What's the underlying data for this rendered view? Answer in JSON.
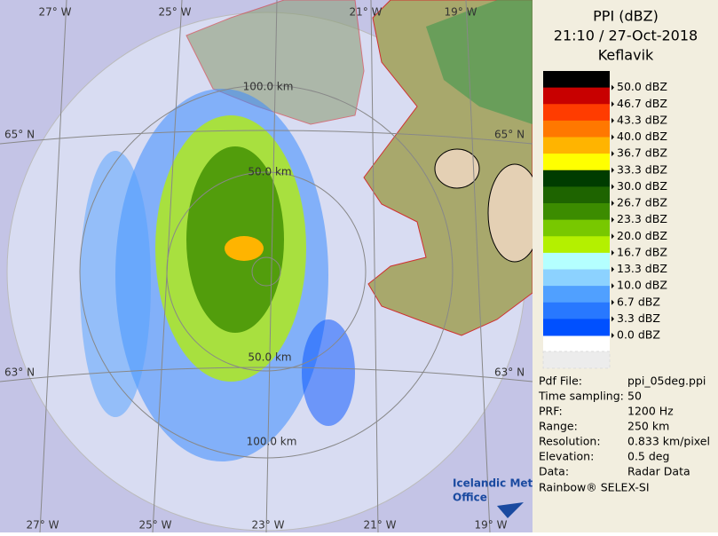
{
  "title": {
    "product": "PPI (dBZ)",
    "datetime": "21:10 / 27-Oct-2018",
    "site": "Keflavik"
  },
  "legend": [
    {
      "label": "50.0 dBZ",
      "color": "#000000"
    },
    {
      "label": "46.7 dBZ",
      "color": "#c80000"
    },
    {
      "label": "43.3 dBZ",
      "color": "#ff3c00"
    },
    {
      "label": "40.0 dBZ",
      "color": "#ff7800"
    },
    {
      "label": "36.7 dBZ",
      "color": "#ffb400"
    },
    {
      "label": "33.3 dBZ",
      "color": "#ffff00"
    },
    {
      "label": "30.0 dBZ",
      "color": "#003c00"
    },
    {
      "label": "26.7 dBZ",
      "color": "#1e6400"
    },
    {
      "label": "23.3 dBZ",
      "color": "#3c8c00"
    },
    {
      "label": "20.0 dBZ",
      "color": "#78c800"
    },
    {
      "label": "16.7 dBZ",
      "color": "#b4f000"
    },
    {
      "label": "13.3 dBZ",
      "color": "#b4ffff"
    },
    {
      "label": "10.0 dBZ",
      "color": "#8cd2ff"
    },
    {
      "label": "6.7 dBZ",
      "color": "#50a0ff"
    },
    {
      "label": "3.3 dBZ",
      "color": "#2878ff"
    },
    {
      "label": "0.0 dBZ",
      "color": "#0050ff"
    }
  ],
  "info": [
    [
      "Pdf File:",
      "ppi_05deg.ppi"
    ],
    [
      "Time sampling:",
      "50"
    ],
    [
      "PRF:",
      "1200 Hz"
    ],
    [
      "Range:",
      "250 km"
    ],
    [
      "Resolution:",
      "0.833 km/pixel"
    ],
    [
      "Elevation:",
      "0.5 deg"
    ],
    [
      "Data:",
      "Radar Data"
    ]
  ],
  "credit": "Rainbow® SELEX-SI",
  "logo": [
    "Icelandic Met",
    "Office"
  ],
  "map": {
    "top_longitudes": [
      "27° W",
      "25° W",
      "21° W",
      "19° W"
    ],
    "bottom_longitudes": [
      "27° W",
      "25° W",
      "23° W",
      "21° W",
      "19° W"
    ],
    "left_latitudes": [
      "65° N",
      "63° N"
    ],
    "right_latitudes": [
      "65° N",
      "63° N"
    ],
    "range_labels": [
      "100.0 km",
      "50.0 km",
      "50.0 km",
      "100.0 km"
    ]
  }
}
